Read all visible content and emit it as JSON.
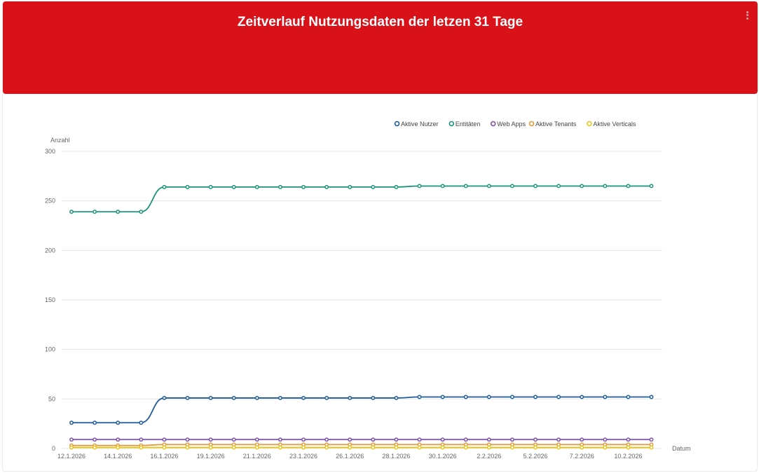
{
  "header": {
    "title": "Zeitverlauf Nutzungsdaten der letzen 31 Tage",
    "menu_icon": "more-vertical-icon",
    "background": "#d91118"
  },
  "chart_data": {
    "type": "line",
    "title": "Zeitverlauf Nutzungsdaten der letzen 31 Tage",
    "xlabel": "Datum",
    "ylabel": "Anzahl",
    "ylim": [
      0,
      300
    ],
    "yticks": [
      0,
      50,
      100,
      150,
      200,
      250,
      300
    ],
    "x_tick_labels": [
      "12.1.2026",
      "14.1.2026",
      "16.1.2026",
      "19.1.2026",
      "21.1.2026",
      "23.1.2026",
      "26.1.2026",
      "28.1.2026",
      "30.1.2026",
      "2.2.2026",
      "5.2.2026",
      "7.2.2026",
      "10.2.2026"
    ],
    "x_tick_index": [
      0,
      2,
      4,
      6,
      8,
      10,
      12,
      14,
      16,
      18,
      20,
      22,
      24
    ],
    "grid": true,
    "legend_position": "top-right",
    "series": [
      {
        "name": "Aktive Nutzer",
        "color": "#1f5c99",
        "values": [
          26,
          26,
          26,
          26,
          51,
          51,
          51,
          51,
          51,
          51,
          51,
          51,
          51,
          51,
          51,
          52,
          52,
          52,
          52,
          52,
          52,
          52,
          52,
          52,
          52,
          52
        ]
      },
      {
        "name": "Entitäten",
        "color": "#1a9478",
        "values": [
          239,
          239,
          239,
          239,
          264,
          264,
          264,
          264,
          264,
          264,
          264,
          264,
          264,
          264,
          264,
          265,
          265,
          265,
          265,
          265,
          265,
          265,
          265,
          265,
          265,
          265
        ]
      },
      {
        "name": "Web Apps",
        "color": "#7b52a6",
        "values": [
          9,
          9,
          9,
          9,
          9,
          9,
          9,
          9,
          9,
          9,
          9,
          9,
          9,
          9,
          9,
          9,
          9,
          9,
          9,
          9,
          9,
          9,
          9,
          9,
          9,
          9
        ]
      },
      {
        "name": "Aktive Tenants",
        "color": "#e39a3c",
        "values": [
          3,
          3,
          3,
          3,
          4,
          4,
          4,
          4,
          4,
          4,
          4,
          4,
          4,
          4,
          4,
          4,
          4,
          4,
          4,
          4,
          4,
          4,
          4,
          4,
          4,
          4
        ]
      },
      {
        "name": "Aktive Verticals",
        "color": "#e8c51a",
        "values": [
          1,
          1,
          1,
          1,
          1,
          1,
          1,
          1,
          1,
          1,
          1,
          1,
          1,
          1,
          1,
          1,
          1,
          1,
          1,
          1,
          1,
          1,
          1,
          1,
          1,
          1
        ]
      }
    ]
  }
}
